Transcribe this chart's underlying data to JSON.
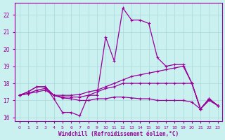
{
  "xlabel": "Windchill (Refroidissement éolien,°C)",
  "background_color": "#caf0f0",
  "grid_color": "#a8d8d8",
  "line_color": "#990099",
  "x": [
    0,
    1,
    2,
    3,
    4,
    5,
    6,
    7,
    8,
    9,
    10,
    11,
    12,
    13,
    14,
    15,
    16,
    17,
    18,
    19,
    20,
    21,
    22,
    23
  ],
  "series1": [
    17.3,
    17.5,
    17.8,
    17.8,
    17.1,
    16.3,
    16.3,
    16.1,
    17.3,
    17.3,
    20.7,
    19.3,
    22.4,
    21.7,
    21.7,
    21.5,
    19.5,
    19.0,
    19.1,
    19.1,
    18.0,
    16.5,
    17.1,
    16.7
  ],
  "series2": [
    17.3,
    17.5,
    17.8,
    17.8,
    17.3,
    17.3,
    17.3,
    17.35,
    17.5,
    17.6,
    17.8,
    18.0,
    18.2,
    18.4,
    18.5,
    18.6,
    18.7,
    18.8,
    18.9,
    19.0,
    18.0,
    16.5,
    17.1,
    16.7
  ],
  "series3": [
    17.3,
    17.4,
    17.6,
    17.7,
    17.3,
    17.2,
    17.2,
    17.2,
    17.3,
    17.5,
    17.7,
    17.8,
    18.0,
    18.0,
    18.0,
    18.0,
    18.0,
    18.0,
    18.0,
    18.0,
    18.0,
    16.5,
    17.1,
    16.7
  ],
  "series4": [
    17.3,
    17.4,
    17.5,
    17.6,
    17.3,
    17.15,
    17.1,
    17.0,
    17.0,
    17.1,
    17.1,
    17.2,
    17.2,
    17.15,
    17.1,
    17.1,
    17.0,
    17.0,
    17.0,
    17.0,
    16.9,
    16.5,
    17.0,
    16.7
  ],
  "ylim": [
    15.8,
    22.7
  ],
  "yticks": [
    16,
    17,
    18,
    19,
    20,
    21,
    22
  ],
  "xlim": [
    -0.5,
    23.5
  ]
}
